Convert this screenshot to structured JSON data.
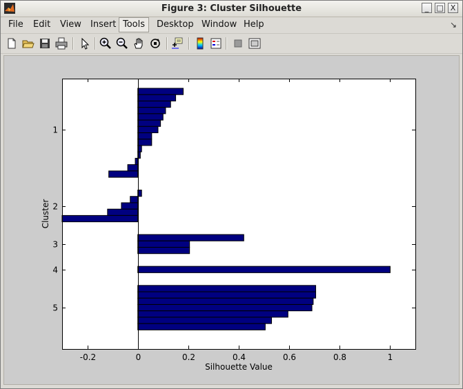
{
  "window": {
    "title": "Figure 3: Cluster Silhouette",
    "minimize": "_",
    "maximize": "□",
    "close": "X"
  },
  "menu": [
    {
      "label": "File"
    },
    {
      "label": "Edit"
    },
    {
      "label": "View"
    },
    {
      "label": "Insert"
    },
    {
      "label": "Tools",
      "active": true
    },
    {
      "label": "Desktop"
    },
    {
      "label": "Window"
    },
    {
      "label": "Help"
    }
  ],
  "menu_dock": "↘",
  "toolbar": [
    "new-file-icon",
    "open-folder-icon",
    "save-icon",
    "print-icon",
    "select-arrow-icon",
    "zoom-in-icon",
    "zoom-out-icon",
    "pan-hand-icon",
    "rotate-3d-icon",
    "data-cursor-icon",
    "colorbar-icon",
    "legend-icon",
    "hide-plot-tools-icon",
    "show-plot-tools-icon"
  ],
  "colors": {
    "bar": "#000080",
    "figure_bg": "#cccccc",
    "axes_bg": "#ffffff"
  },
  "chart_data": {
    "type": "bar",
    "orientation": "horizontal",
    "xlabel": "Silhouette Value",
    "ylabel": "Cluster",
    "xlim": [
      -0.3,
      1.1
    ],
    "xticks": [
      -0.2,
      0,
      0.2,
      0.4,
      0.6,
      0.8,
      1
    ],
    "xtick_labels": [
      "-0.2",
      "0",
      "0.2",
      "0.4",
      "0.6",
      "0.8",
      "1"
    ],
    "yticks": [
      {
        "label": "1",
        "row": 7.5
      },
      {
        "label": "2",
        "row": 19.5
      },
      {
        "label": "3",
        "row": 25.5
      },
      {
        "label": "4",
        "row": 29.5
      },
      {
        "label": "5",
        "row": 35.5
      }
    ],
    "total_rows": 41,
    "clusters": [
      {
        "name": "1",
        "start_row": 1,
        "values": [
          0.18,
          0.15,
          0.13,
          0.11,
          0.1,
          0.09,
          0.08,
          0.055,
          0.055,
          0.015,
          0.01,
          -0.01,
          -0.04,
          -0.115
        ]
      },
      {
        "name": "2",
        "start_row": 17,
        "values": [
          0.015,
          -0.03,
          -0.065,
          -0.12,
          -0.31
        ]
      },
      {
        "name": "3",
        "start_row": 24,
        "values": [
          0.42,
          0.205,
          0.205
        ]
      },
      {
        "name": "4",
        "start_row": 29,
        "values": [
          1.0
        ]
      },
      {
        "name": "5",
        "start_row": 32,
        "values": [
          0.705,
          0.705,
          0.695,
          0.69,
          0.595,
          0.53,
          0.505
        ]
      }
    ]
  }
}
